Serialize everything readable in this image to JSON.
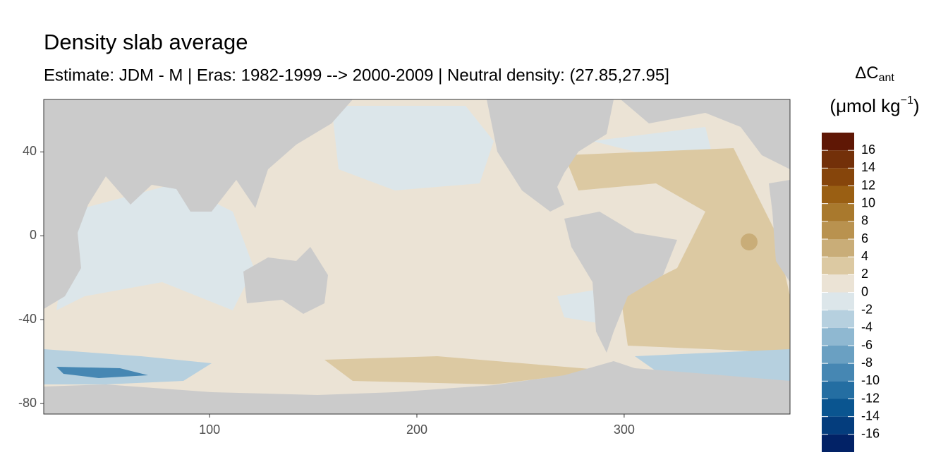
{
  "chart_data": {
    "type": "raster-map",
    "title": "Density slab average",
    "subtitle": "Estimate: JDM - M | Eras: 1982-1999 --> 2000-2009 | Neutral density: (27.85,27.95]",
    "xlim": [
      20,
      380
    ],
    "xticks": [
      100,
      200,
      300
    ],
    "ylim": [
      -85,
      65
    ],
    "yticks": [
      40,
      0,
      -40,
      -80
    ],
    "legend": {
      "title_main": "ΔC",
      "title_sub": "ant",
      "unit_main": "(μmol kg",
      "unit_sup": "−1",
      "unit_close": ")",
      "limits": [
        -18,
        18
      ],
      "breaks": [
        16,
        14,
        12,
        10,
        8,
        6,
        4,
        2,
        0,
        -2,
        -4,
        -6,
        -8,
        -10,
        -12,
        -14,
        -16
      ],
      "colors": [
        "#5f1705",
        "#733009",
        "#86450b",
        "#9a5f13",
        "#a9792d",
        "#b9924f",
        "#c9ad78",
        "#dcc9a2",
        "#ebe3d5",
        "#dce6ea",
        "#b6d0df",
        "#8fb8d1",
        "#6aa0c2",
        "#4687b3",
        "#246ea2",
        "#0a5590",
        "#043d7d",
        "#022266"
      ]
    }
  }
}
